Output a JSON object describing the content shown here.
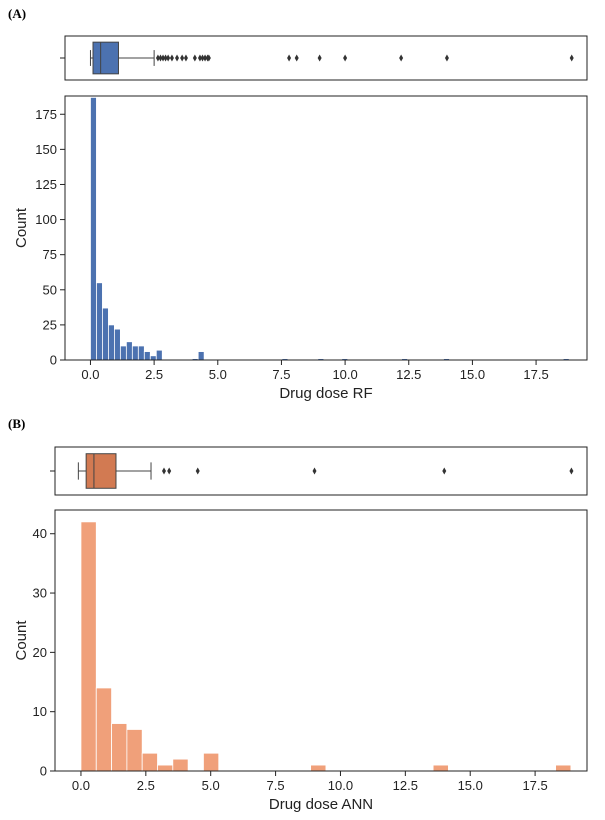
{
  "panels": [
    {
      "label": "(A)"
    },
    {
      "label": "(B)"
    }
  ],
  "chart_data": [
    {
      "type": "bar",
      "panel": "(A)",
      "xlabel": "Drug dose RF",
      "ylabel": "Count",
      "xlim": [
        -1.0,
        19.5
      ],
      "ylim": [
        0,
        188
      ],
      "xticks": [
        0.0,
        2.5,
        5.0,
        7.5,
        10.0,
        12.5,
        15.0,
        17.5
      ],
      "xtick_labels": [
        "0.0",
        "2.5",
        "5.0",
        "7.5",
        "10.0",
        "12.5",
        "15.0",
        "17.5"
      ],
      "yticks": [
        0,
        25,
        50,
        75,
        100,
        125,
        150,
        175
      ],
      "ytick_labels": [
        "0",
        "25",
        "50",
        "75",
        "100",
        "125",
        "150",
        "175"
      ],
      "grid": false,
      "bar_color": "#4c72b0",
      "bin_start": 0.0,
      "bin_width": 0.235,
      "values": [
        187,
        55,
        37,
        25,
        22,
        10,
        13,
        10,
        10,
        6,
        3,
        7,
        0,
        0,
        0,
        0,
        0,
        1,
        6,
        0,
        0,
        0,
        0,
        0,
        0,
        0,
        0,
        0,
        0,
        0,
        0,
        0,
        1,
        0,
        0,
        0,
        0,
        0,
        1,
        0,
        0,
        0,
        1,
        0,
        0,
        0,
        0,
        0,
        0,
        0,
        0,
        0,
        1,
        0,
        0,
        0,
        0,
        0,
        0,
        1,
        0,
        0,
        0,
        0,
        0,
        0,
        0,
        0,
        0,
        0,
        0,
        0,
        0,
        0,
        0,
        0,
        0,
        0,
        0,
        1
      ],
      "boxplot": {
        "q1": 0.1,
        "median": 0.4,
        "q3": 1.1,
        "whisker_low": 0.0,
        "whisker_high": 2.5,
        "outliers": [
          2.65,
          2.75,
          2.85,
          2.95,
          3.05,
          3.2,
          3.4,
          3.6,
          3.75,
          4.1,
          4.3,
          4.4,
          4.5,
          4.6,
          4.65,
          7.8,
          8.1,
          9.0,
          10.0,
          12.2,
          14.0,
          18.9
        ],
        "color": "#4c72b0"
      }
    },
    {
      "type": "bar",
      "panel": "(B)",
      "xlabel": "Drug dose ANN",
      "ylabel": "Count",
      "xlim": [
        -1.0,
        19.5
      ],
      "ylim": [
        0,
        44
      ],
      "xticks": [
        0.0,
        2.5,
        5.0,
        7.5,
        10.0,
        12.5,
        15.0,
        17.5
      ],
      "xtick_labels": [
        "0.0",
        "2.5",
        "5.0",
        "7.5",
        "10.0",
        "12.5",
        "15.0",
        "17.5"
      ],
      "yticks": [
        0,
        10,
        20,
        30,
        40
      ],
      "ytick_labels": [
        "0",
        "10",
        "20",
        "30",
        "40"
      ],
      "grid": false,
      "bar_color": "#f0a07a",
      "bin_start": 0.0,
      "bin_width": 0.59,
      "values": [
        42,
        14,
        8,
        7,
        3,
        1,
        2,
        0,
        3,
        0,
        0,
        0,
        0,
        0,
        0,
        1,
        0,
        0,
        0,
        0,
        0,
        0,
        0,
        1,
        0,
        0,
        0,
        0,
        0,
        0,
        0,
        1
      ],
      "boxplot": {
        "q1": 0.2,
        "median": 0.5,
        "q3": 1.35,
        "whisker_low": -0.1,
        "whisker_high": 2.7,
        "outliers": [
          3.2,
          3.4,
          4.5,
          9.0,
          14.0,
          18.9
        ],
        "color": "#d27a52"
      }
    }
  ]
}
